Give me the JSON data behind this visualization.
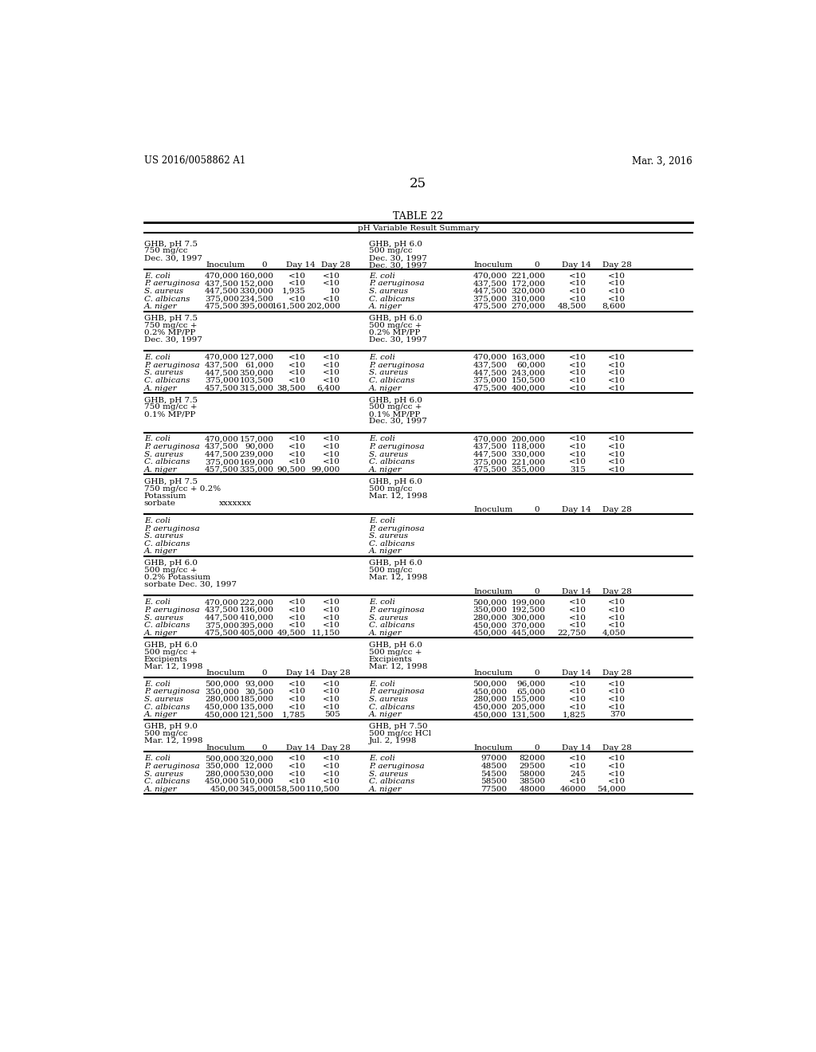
{
  "header_left": "US 2016/0058862 A1",
  "header_right": "Mar. 3, 2016",
  "page_number": "25",
  "table_title": "TABLE 22",
  "subtitle": "pH Variable Result Summary",
  "sections": [
    {
      "left_header": [
        "GHB, pH 7.5",
        "750 mg/cc",
        "Dec. 30, 1997"
      ],
      "left_has_colhdrs": true,
      "left_data": [
        [
          "E. coli",
          "470,000",
          "160,000",
          "<10",
          "<10"
        ],
        [
          "P. aeruginosa",
          "437,500",
          "152,000",
          "<10",
          "<10"
        ],
        [
          "S. aureus",
          "447,500",
          "330,000",
          "1,935",
          "10"
        ],
        [
          "C. albicans",
          "375,000",
          "234,500",
          "<10",
          "<10"
        ],
        [
          "A. niger",
          "475,500",
          "395,000",
          "161,500",
          "202,000"
        ]
      ],
      "right_header": [
        "GHB, pH 6.0",
        "500 mg/cc",
        "Dec. 30, 1997"
      ],
      "right_has_colhdrs": true,
      "right_data": [
        [
          "E. coli",
          "470,000",
          "221,000",
          "<10",
          "<10"
        ],
        [
          "P. aeruginosa",
          "437,500",
          "172,000",
          "<10",
          "<10"
        ],
        [
          "S. aureus",
          "447,500",
          "320,000",
          "<10",
          "<10"
        ],
        [
          "C. albicans",
          "375,000",
          "310,000",
          "<10",
          "<10"
        ],
        [
          "A. niger",
          "475,500",
          "270,000",
          "48,500",
          "8,600"
        ]
      ]
    },
    {
      "left_header": [
        "GHB, pH 7.5",
        "750 mg/cc +",
        "0.2% MP/PP",
        "Dec. 30, 1997"
      ],
      "left_has_colhdrs": false,
      "left_data": [
        [
          "E. coli",
          "470,000",
          "127,000",
          "<10",
          "<10"
        ],
        [
          "P. aeruginosa",
          "437,500",
          "61,000",
          "<10",
          "<10"
        ],
        [
          "S. aureus",
          "447,500",
          "350,000",
          "<10",
          "<10"
        ],
        [
          "C. albicans",
          "375,000",
          "103,500",
          "<10",
          "<10"
        ],
        [
          "A. niger",
          "457,500",
          "315,000",
          "38,500",
          "6,400"
        ]
      ],
      "right_header": [
        "GHB, pH 6.0",
        "500 mg/cc +",
        "0.2% MP/PP",
        "Dec. 30, 1997"
      ],
      "right_has_colhdrs": false,
      "right_data": [
        [
          "E. coli",
          "470,000",
          "163,000",
          "<10",
          "<10"
        ],
        [
          "P. aeruginosa",
          "437,500",
          "60,000",
          "<10",
          "<10"
        ],
        [
          "S. aureus",
          "447,500",
          "243,000",
          "<10",
          "<10"
        ],
        [
          "C. albicans",
          "375,000",
          "150,500",
          "<10",
          "<10"
        ],
        [
          "A. niger",
          "475,500",
          "400,000",
          "<10",
          "<10"
        ]
      ]
    },
    {
      "left_header": [
        "GHB, pH 7.5",
        "750 mg/cc +",
        "0.1% MP/PP"
      ],
      "left_has_colhdrs": false,
      "left_data": [
        [
          "E. coli",
          "470,000",
          "157,000",
          "<10",
          "<10"
        ],
        [
          "P. aeruginosa",
          "437,500",
          "90,000",
          "<10",
          "<10"
        ],
        [
          "S. aureus",
          "447,500",
          "239,000",
          "<10",
          "<10"
        ],
        [
          "C. albicans",
          "375,000",
          "169,000",
          "<10",
          "<10"
        ],
        [
          "A. niger",
          "457,500",
          "335,000",
          "90,500",
          "99,000"
        ]
      ],
      "right_header": [
        "GHB, pH 6.0",
        "500 mg/cc +",
        "0.1% MP/PP",
        "Dec. 30, 1997"
      ],
      "right_has_colhdrs": false,
      "right_data": [
        [
          "E. coli",
          "470,000",
          "200,000",
          "<10",
          "<10"
        ],
        [
          "P. aeruginosa",
          "437,500",
          "118,000",
          "<10",
          "<10"
        ],
        [
          "S. aureus",
          "447,500",
          "330,000",
          "<10",
          "<10"
        ],
        [
          "C. albicans",
          "375,000",
          "221,000",
          "<10",
          "<10"
        ],
        [
          "A. niger",
          "475,500",
          "355,000",
          "315",
          "<10"
        ]
      ]
    },
    {
      "left_header": [
        "GHB, pH 7.5",
        "750 mg/cc + 0.2%",
        "Potassium",
        "sorbate"
      ],
      "left_special": "xxxxxxx",
      "left_has_colhdrs": false,
      "left_data": [
        [
          "E. coli",
          "",
          "",
          "",
          ""
        ],
        [
          "P. aeruginosa",
          "",
          "",
          "",
          ""
        ],
        [
          "S. aureus",
          "",
          "",
          "",
          ""
        ],
        [
          "C. albicans",
          "",
          "",
          "",
          ""
        ],
        [
          "A. niger",
          "",
          "",
          "",
          ""
        ]
      ],
      "right_header": [
        "GHB, pH 6.0",
        "500 mg/cc",
        "Mar. 12, 1998"
      ],
      "right_has_colhdrs": true,
      "right_data": [
        [
          "E. coli",
          "",
          "",
          "",
          ""
        ],
        [
          "P. aeruginosa",
          "",
          "",
          "",
          ""
        ],
        [
          "S. aureus",
          "",
          "",
          "",
          ""
        ],
        [
          "C. albicans",
          "",
          "",
          "",
          ""
        ],
        [
          "A. niger",
          "",
          "",
          "",
          ""
        ]
      ]
    },
    {
      "left_header": [
        "GHB, pH 6.0",
        "500 mg/cc +",
        "0.2% Potassium",
        "sorbate Dec. 30, 1997"
      ],
      "left_has_colhdrs": false,
      "left_data": [
        [
          "E. coli",
          "470,000",
          "222,000",
          "<10",
          "<10"
        ],
        [
          "P. aeruginosa",
          "437,500",
          "136,000",
          "<10",
          "<10"
        ],
        [
          "S. aureus",
          "447,500",
          "410,000",
          "<10",
          "<10"
        ],
        [
          "C. albicans",
          "375,000",
          "395,000",
          "<10",
          "<10"
        ],
        [
          "A. niger",
          "475,500",
          "405,000",
          "49,500",
          "11,150"
        ]
      ],
      "right_header": [
        "GHB, pH 6.0",
        "500 mg/cc",
        "Mar. 12, 1998"
      ],
      "right_has_colhdrs": true,
      "right_data": [
        [
          "E. coli",
          "500,000",
          "199,000",
          "<10",
          "<10"
        ],
        [
          "P. aeruginosa",
          "350,000",
          "192,500",
          "<10",
          "<10"
        ],
        [
          "S. aureus",
          "280,000",
          "300,000",
          "<10",
          "<10"
        ],
        [
          "C. albicans",
          "450,000",
          "370,000",
          "<10",
          "<10"
        ],
        [
          "A. niger",
          "450,000",
          "445,000",
          "22,750",
          "4,050"
        ]
      ]
    },
    {
      "left_header": [
        "GHB, pH 6.0",
        "500 mg/cc +",
        "Excipients",
        "Mar. 12, 1998"
      ],
      "left_has_colhdrs": true,
      "left_data": [
        [
          "E. coli",
          "500,000",
          "93,000",
          "<10",
          "<10"
        ],
        [
          "P. aeruginosa",
          "350,000",
          "30,500",
          "<10",
          "<10"
        ],
        [
          "S. aureus",
          "280,000",
          "185,000",
          "<10",
          "<10"
        ],
        [
          "C. albicans",
          "450,000",
          "135,000",
          "<10",
          "<10"
        ],
        [
          "A. niger",
          "450,000",
          "121,500",
          "1,785",
          "505"
        ]
      ],
      "right_header": [
        "GHB, pH 6.0",
        "500 mg/cc +",
        "Excipients",
        "Mar. 12, 1998"
      ],
      "right_has_colhdrs": true,
      "right_data": [
        [
          "E. coli",
          "500,000",
          "96,000",
          "<10",
          "<10"
        ],
        [
          "P. aeruginosa",
          "450,000",
          "65,000",
          "<10",
          "<10"
        ],
        [
          "S. aureus",
          "280,000",
          "155,000",
          "<10",
          "<10"
        ],
        [
          "C. albicans",
          "450,000",
          "205,000",
          "<10",
          "<10"
        ],
        [
          "A. niger",
          "450,000",
          "131,500",
          "1,825",
          "370"
        ]
      ]
    },
    {
      "left_header": [
        "GHB, pH 9.0",
        "500 mg/cc",
        "Mar. 12, 1998"
      ],
      "left_has_colhdrs": true,
      "left_data": [
        [
          "E. coli",
          "500,000",
          "320,000",
          "<10",
          "<10"
        ],
        [
          "P. aeruginosa",
          "350,000",
          "12,000",
          "<10",
          "<10"
        ],
        [
          "S. aureus",
          "280,000",
          "530,000",
          "<10",
          "<10"
        ],
        [
          "C. albicans",
          "450,000",
          "510,000",
          "<10",
          "<10"
        ],
        [
          "A. niger",
          "450,00",
          "345,000",
          "158,500",
          "110,500"
        ]
      ],
      "right_header": [
        "GHB, pH 7.50",
        "500 mg/cc HCl",
        "Jul. 2, 1998"
      ],
      "right_has_colhdrs": true,
      "right_data": [
        [
          "E. coli",
          "97000",
          "82000",
          "<10",
          "<10"
        ],
        [
          "P. aeruginosa",
          "48500",
          "29500",
          "<10",
          "<10"
        ],
        [
          "S. aureus",
          "54500",
          "58000",
          "245",
          "<10"
        ],
        [
          "C. albicans",
          "58500",
          "38500",
          "<10",
          "<10"
        ],
        [
          "A. niger",
          "77500",
          "48000",
          "46000",
          "54,000"
        ]
      ]
    }
  ]
}
